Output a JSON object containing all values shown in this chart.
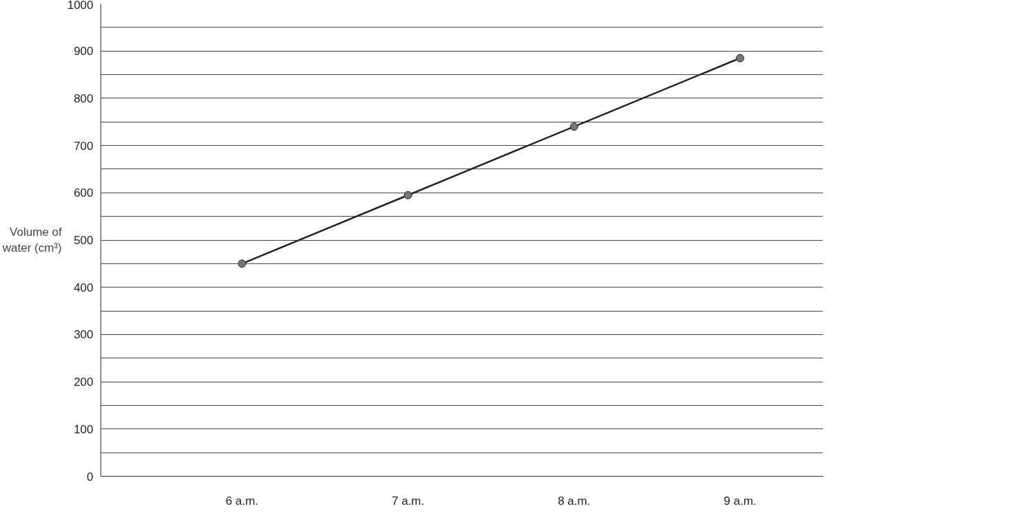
{
  "chart_data": {
    "type": "line",
    "ylabel": "Volume of\nwater (cm³)",
    "categories": [
      "6 a.m.",
      "7 a.m.",
      "8 a.m.",
      "9 a.m."
    ],
    "series": [
      {
        "color": "#222222",
        "values": [
          450,
          595,
          740,
          885
        ]
      }
    ],
    "ylim": [
      0,
      1000
    ],
    "yticks": [
      0,
      {
        "value": 50,
        "label": null
      },
      100,
      {
        "value": 150,
        "label": null
      },
      200,
      {
        "value": 250,
        "label": null
      },
      300,
      {
        "value": 350,
        "label": null
      },
      400,
      {
        "value": 450,
        "label": null
      },
      500,
      {
        "value": 550,
        "label": null
      },
      600,
      {
        "value": 650,
        "label": null
      },
      700,
      {
        "value": 750,
        "label": null
      },
      800,
      {
        "value": 850,
        "label": null
      },
      900,
      {
        "value": 950,
        "label": null
      },
      1000
    ],
    "grid": "y",
    "marker": "circle",
    "line_style": "solid"
  }
}
